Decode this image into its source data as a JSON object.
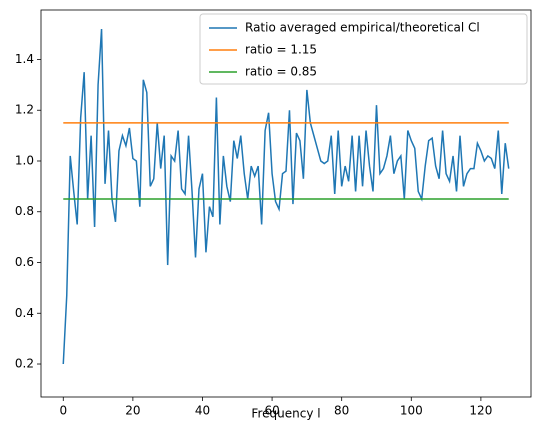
{
  "chart_data": {
    "type": "line",
    "xlabel": "Frequency l",
    "xlim": [
      -6.4,
      134.4
    ],
    "ylim": [
      0.07,
      1.595
    ],
    "xticks": [
      0,
      20,
      40,
      60,
      80,
      100,
      120
    ],
    "yticks": [
      0.2,
      0.4,
      0.6,
      {
        "value": 1,
        "label": "1.0"
      },
      0.8,
      1.2,
      1.4
    ],
    "legend": "upper right",
    "series": [
      {
        "name": "Ratio averaged empirical/theoretical Cl",
        "color": "#1f77b4",
        "x": [
          0,
          1,
          2,
          3,
          4,
          5,
          6,
          7,
          8,
          9,
          10,
          11,
          12,
          13,
          14,
          15,
          16,
          17,
          18,
          19,
          20,
          21,
          22,
          23,
          24,
          25,
          26,
          27,
          28,
          29,
          30,
          31,
          32,
          33,
          34,
          35,
          36,
          37,
          38,
          39,
          40,
          41,
          42,
          43,
          44,
          45,
          46,
          47,
          48,
          49,
          50,
          51,
          52,
          53,
          54,
          55,
          56,
          57,
          58,
          59,
          60,
          61,
          62,
          63,
          64,
          65,
          66,
          67,
          68,
          69,
          70,
          71,
          72,
          73,
          74,
          75,
          76,
          77,
          78,
          79,
          80,
          81,
          82,
          83,
          84,
          85,
          86,
          87,
          88,
          89,
          90,
          91,
          92,
          93,
          94,
          95,
          96,
          97,
          98,
          99,
          100,
          101,
          102,
          103,
          104,
          105,
          106,
          107,
          108,
          109,
          110,
          111,
          112,
          113,
          114,
          115,
          116,
          117,
          118,
          119,
          120,
          121,
          122,
          123,
          124,
          125,
          126,
          127,
          128
        ],
        "values": [
          0.2,
          0.47,
          1.02,
          0.88,
          0.75,
          1.17,
          1.35,
          0.85,
          1.1,
          0.74,
          1.3,
          1.52,
          0.91,
          1.12,
          0.85,
          0.76,
          1.04,
          1.1,
          1.06,
          1.13,
          1.01,
          1.0,
          0.82,
          1.32,
          1.27,
          0.9,
          0.93,
          1.15,
          0.97,
          1.1,
          0.59,
          1.02,
          1.0,
          1.12,
          0.89,
          0.87,
          1.1,
          0.88,
          0.62,
          0.89,
          0.95,
          0.64,
          0.82,
          0.78,
          1.25,
          0.75,
          1.02,
          0.9,
          0.84,
          1.08,
          1.01,
          1.1,
          0.95,
          0.85,
          0.98,
          0.94,
          0.98,
          0.75,
          1.12,
          1.19,
          0.95,
          0.84,
          0.81,
          0.95,
          0.96,
          1.2,
          0.83,
          1.11,
          1.08,
          0.93,
          1.28,
          1.15,
          1.1,
          1.05,
          1.0,
          0.99,
          1.0,
          1.1,
          0.87,
          1.12,
          0.9,
          0.98,
          0.92,
          1.1,
          0.88,
          1.1,
          0.9,
          1.12,
          0.98,
          0.88,
          1.22,
          0.95,
          0.97,
          1.02,
          1.1,
          0.95,
          1.0,
          1.02,
          0.85,
          1.12,
          1.08,
          1.05,
          0.88,
          0.85,
          0.98,
          1.08,
          1.09,
          0.98,
          0.93,
          1.12,
          0.95,
          0.92,
          1.02,
          0.88,
          1.1,
          0.9,
          0.95,
          0.97,
          0.97,
          1.07,
          1.04,
          1.0,
          1.02,
          1.01,
          0.97,
          1.12,
          0.87,
          1.07,
          0.97
        ]
      },
      {
        "name": "ratio = 1.15",
        "color": "#ff7f0e",
        "x": [
          0,
          128
        ],
        "values": [
          1.15,
          1.15
        ]
      },
      {
        "name": "ratio = 0.85",
        "color": "#2ca02c",
        "x": [
          0,
          128
        ],
        "values": [
          0.85,
          0.85
        ]
      }
    ]
  }
}
